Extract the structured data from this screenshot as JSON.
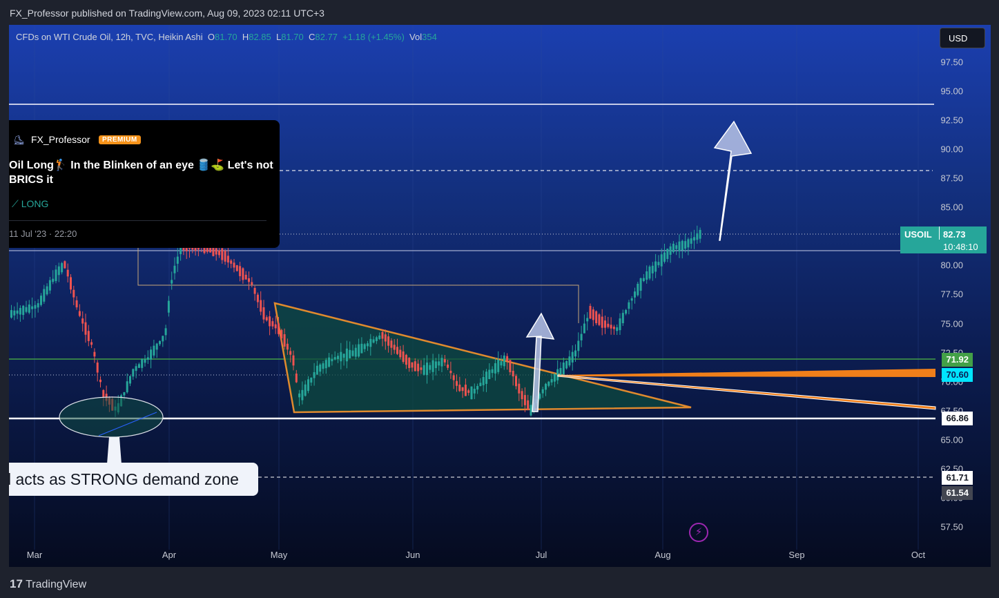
{
  "header": {
    "published": "FX_Professor published on TradingView.com, Aug 09, 2023 02:11 UTC+3"
  },
  "legend": {
    "symbol": "CFDs on WTI Crude Oil, 12h, TVC, Heikin Ashi",
    "o_label": "O",
    "o": "81.70",
    "h_label": "H",
    "h": "82.85",
    "l_label": "L",
    "l": "81.70",
    "c_label": "C",
    "c": "82.77",
    "change": "+1.18 (+1.45%)",
    "vol_label": "Vol",
    "vol": "354"
  },
  "currency": "USD",
  "idea_card": {
    "author": "FX_Professor",
    "badge": "PREMIUM",
    "title": "Oil Long🏌 In the Blinken of an eye 🛢️⛳ Let's not BRICS it",
    "direction": "⟋ LONG",
    "date": "11 Jul '23 · 22:20"
  },
  "callout": {
    "text": "l acts as STRONG demand zone"
  },
  "price_labels": [
    {
      "symbol": "USOIL",
      "price": "82.73",
      "timer": "10:48:10"
    },
    {
      "price": "71.92"
    },
    {
      "price": "70.60"
    },
    {
      "price": "66.86"
    },
    {
      "price": "61.71"
    },
    {
      "price": "61.54"
    }
  ],
  "y_ticks": [
    "97.50",
    "95.00",
    "92.50",
    "90.00",
    "87.50",
    "85.00",
    "80.00",
    "77.50",
    "75.00",
    "72.50",
    "70.00",
    "67.50",
    "65.00",
    "62.50",
    "60.00",
    "57.50"
  ],
  "x_ticks": [
    "Mar",
    "Apr",
    "May",
    "Jun",
    "Jul",
    "Aug",
    "Sep",
    "Oct"
  ],
  "footer": {
    "brand": "TradingView"
  },
  "colors": {
    "up": "#26a69a",
    "down": "#ef5350",
    "accent": "#f7931a",
    "resistance": "#ffffff",
    "support": "#43a047"
  },
  "chart_data": {
    "type": "candlestick",
    "y_axis_range": [
      56.5,
      99.5
    ],
    "horizontal_levels": [
      94.0,
      88.1,
      81.2,
      71.92,
      70.6,
      66.86,
      61.71
    ],
    "last_price": 82.73
  }
}
